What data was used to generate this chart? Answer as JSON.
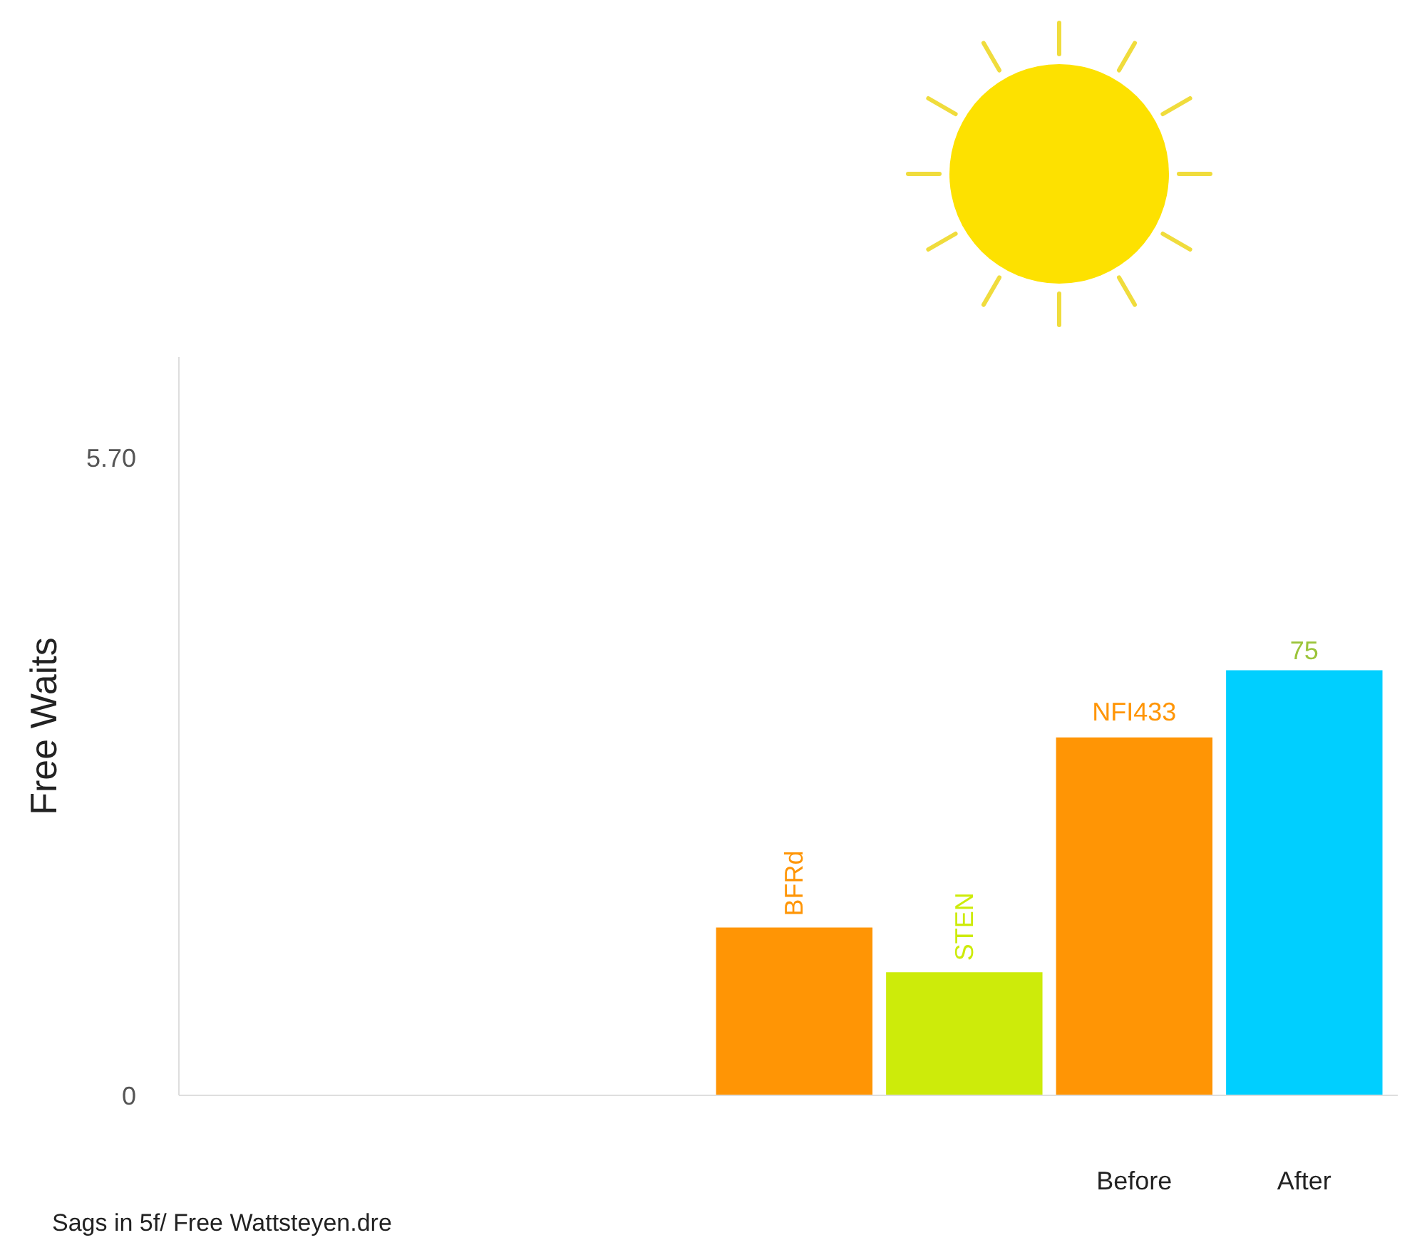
{
  "chart_data": {
    "type": "bar",
    "ylabel": "Free Waits",
    "categories": [
      null,
      null,
      null,
      null,
      null,
      "Before",
      "After"
    ],
    "values": [
      null,
      null,
      null,
      1.5,
      1.1,
      3.2,
      3.8
    ],
    "colors": [
      null,
      null,
      null,
      "#ff9505",
      "#cdeb0a",
      "#ff9505",
      "#00cfff"
    ],
    "value_labels": [
      null,
      null,
      null,
      "BFRd",
      "STEN",
      "NFI433",
      null
    ],
    "ylim": [
      0,
      6.6
    ],
    "yticks": [
      {
        "value": 5.7,
        "label": "5.70"
      },
      0
    ],
    "grid": false,
    "annotations": [
      {
        "text": "75",
        "x": "After",
        "y": 3.8
      },
      "Sags in 5f/ Free Wattsteyen.dre"
    ]
  }
}
